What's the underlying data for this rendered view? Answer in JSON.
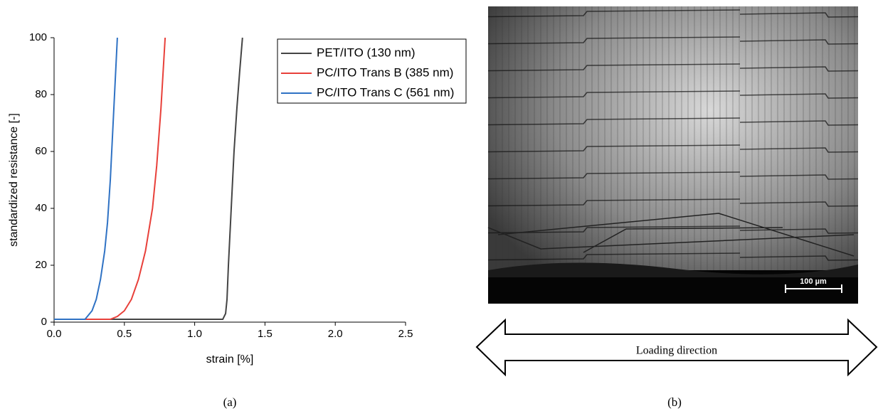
{
  "chart_data": {
    "type": "line",
    "xlabel": "strain [%]",
    "ylabel": "standardized resistance [-]",
    "xlim": [
      0,
      2.5
    ],
    "ylim": [
      0,
      100
    ],
    "xticks": [
      {
        "value": 0,
        "label": "0.0"
      },
      {
        "value": 0.5,
        "label": "0.5"
      },
      {
        "value": 1,
        "label": "1.0"
      },
      {
        "value": 1.5,
        "label": "1.5"
      },
      {
        "value": 2,
        "label": "2.0"
      },
      {
        "value": 2.5,
        "label": "2.5"
      }
    ],
    "yticks": [
      0,
      20,
      40,
      60,
      80,
      100
    ],
    "legend": "top-right",
    "series": [
      {
        "name": "PET/ITO (130 nm)",
        "color": "#444444",
        "x": [
          0,
          1.2,
          1.22,
          1.23,
          1.24,
          1.26,
          1.28,
          1.3,
          1.32,
          1.34
        ],
        "values": [
          1,
          1,
          3,
          8,
          20,
          40,
          60,
          75,
          88,
          100
        ]
      },
      {
        "name": "PC/ITO Trans B (385 nm)",
        "color": "#e8403a",
        "x": [
          0,
          0.4,
          0.45,
          0.5,
          0.55,
          0.6,
          0.65,
          0.7,
          0.73,
          0.76,
          0.79
        ],
        "values": [
          1,
          1,
          2,
          4,
          8,
          15,
          25,
          40,
          55,
          75,
          100
        ]
      },
      {
        "name": "PC/ITO Trans C (561 nm)",
        "color": "#2f72c4",
        "x": [
          0,
          0.22,
          0.27,
          0.3,
          0.33,
          0.36,
          0.38,
          0.4,
          0.42,
          0.44,
          0.45
        ],
        "values": [
          1,
          1,
          4,
          8,
          15,
          25,
          35,
          50,
          70,
          90,
          100
        ]
      }
    ]
  },
  "figure": {
    "panel_a": "(a)",
    "panel_b": "(b)",
    "scale_bar": "100 µm",
    "arrow_label": "Loading direction"
  }
}
